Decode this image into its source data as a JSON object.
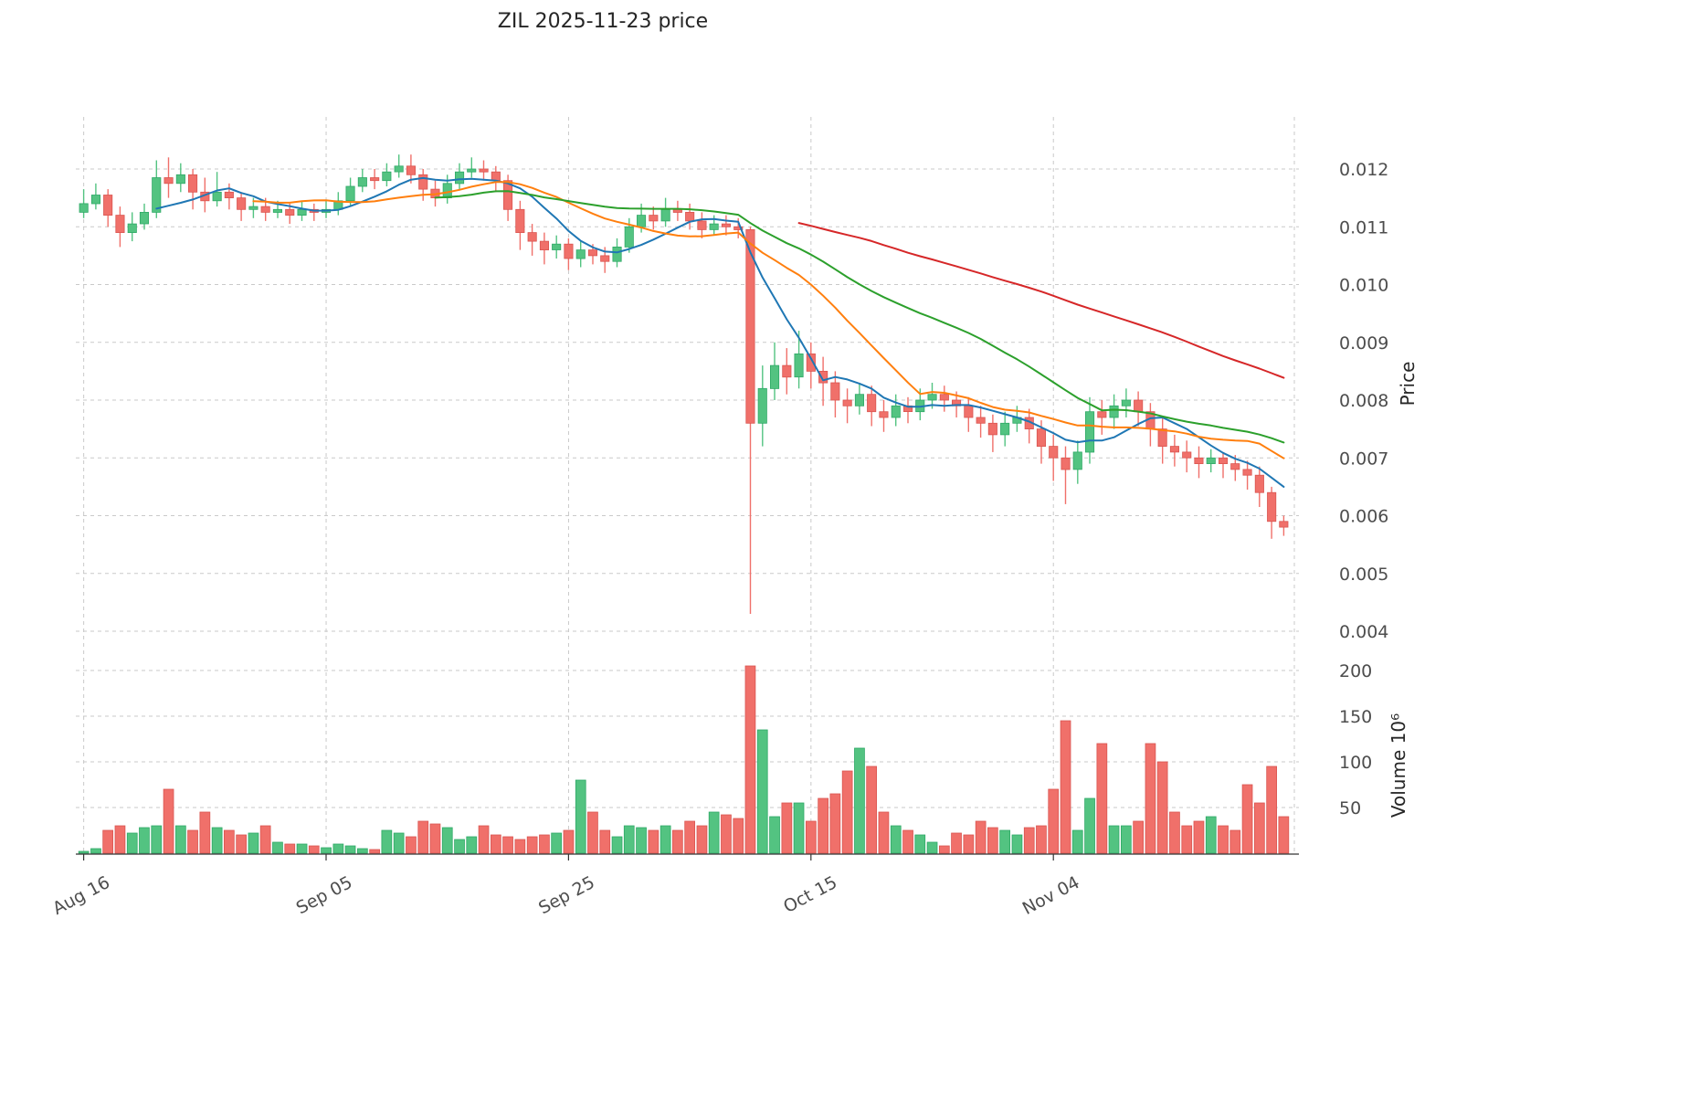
{
  "chart_data": {
    "type": "candlestick",
    "title": "ZIL  2025-11-23  price",
    "ylabel_price": "Price",
    "ylabel_volume": "Volume  10⁶",
    "legend_position": "none",
    "grid": true,
    "x_tick_labels": [
      "Aug 16",
      "Sep 05",
      "Sep 25",
      "Oct 15",
      "Nov 04"
    ],
    "x_tick_indices": [
      0,
      20,
      40,
      60,
      80
    ],
    "price_ticks": [
      0.004,
      0.005,
      0.006,
      0.007,
      0.008,
      0.009,
      0.01,
      0.011,
      0.012
    ],
    "price_ylim": [
      0.0038,
      0.0129
    ],
    "volume_ticks": [
      50,
      100,
      150,
      200
    ],
    "volume_ylim": [
      0,
      230
    ],
    "moving_averages": [
      {
        "name": "ma7",
        "window": 7,
        "color": "#1f77b4"
      },
      {
        "name": "ma15",
        "window": 15,
        "color": "#ff7f0e"
      },
      {
        "name": "ma30",
        "window": 30,
        "color": "#2ca02c"
      },
      {
        "name": "ma60",
        "window": 60,
        "color": "#d62728"
      }
    ],
    "colors": {
      "up": "#53c381",
      "down": "#f0706a",
      "up_edge": "#2fa866",
      "down_edge": "#d95550",
      "grid": "#c9c9c9",
      "text": "#4d4d4d",
      "spine": "#333333"
    },
    "candles": [
      [
        0.01125,
        0.01165,
        0.01115,
        0.0114
      ],
      [
        0.0114,
        0.01175,
        0.0113,
        0.01155
      ],
      [
        0.01155,
        0.01165,
        0.011,
        0.0112
      ],
      [
        0.0112,
        0.01135,
        0.01065,
        0.0109
      ],
      [
        0.0109,
        0.01125,
        0.01075,
        0.01105
      ],
      [
        0.01105,
        0.0114,
        0.01095,
        0.01125
      ],
      [
        0.01125,
        0.01215,
        0.01115,
        0.01185
      ],
      [
        0.01185,
        0.0122,
        0.0115,
        0.01175
      ],
      [
        0.01175,
        0.0121,
        0.0116,
        0.0119
      ],
      [
        0.0119,
        0.012,
        0.0113,
        0.0116
      ],
      [
        0.0116,
        0.01185,
        0.01125,
        0.01145
      ],
      [
        0.01145,
        0.01195,
        0.01135,
        0.0116
      ],
      [
        0.0116,
        0.01175,
        0.0113,
        0.0115
      ],
      [
        0.0115,
        0.0116,
        0.0111,
        0.0113
      ],
      [
        0.0113,
        0.0115,
        0.01115,
        0.01135
      ],
      [
        0.01135,
        0.0115,
        0.0111,
        0.01125
      ],
      [
        0.01125,
        0.01145,
        0.01115,
        0.0113
      ],
      [
        0.0113,
        0.0114,
        0.01105,
        0.0112
      ],
      [
        0.0112,
        0.01145,
        0.0111,
        0.0113
      ],
      [
        0.0113,
        0.0114,
        0.0111,
        0.01125
      ],
      [
        0.01125,
        0.01145,
        0.01115,
        0.0113
      ],
      [
        0.0113,
        0.0116,
        0.0112,
        0.01145
      ],
      [
        0.01145,
        0.01185,
        0.01135,
        0.0117
      ],
      [
        0.0117,
        0.012,
        0.0116,
        0.01185
      ],
      [
        0.01185,
        0.012,
        0.01165,
        0.0118
      ],
      [
        0.0118,
        0.0121,
        0.0117,
        0.01195
      ],
      [
        0.01195,
        0.01225,
        0.01185,
        0.01205
      ],
      [
        0.01205,
        0.01225,
        0.01175,
        0.0119
      ],
      [
        0.0119,
        0.012,
        0.01145,
        0.01165
      ],
      [
        0.01165,
        0.0118,
        0.01135,
        0.0115
      ],
      [
        0.0115,
        0.0119,
        0.0114,
        0.01175
      ],
      [
        0.01175,
        0.0121,
        0.01165,
        0.01195
      ],
      [
        0.01195,
        0.0122,
        0.01185,
        0.012
      ],
      [
        0.012,
        0.01215,
        0.0118,
        0.01195
      ],
      [
        0.01195,
        0.01205,
        0.0116,
        0.0118
      ],
      [
        0.0118,
        0.0119,
        0.0111,
        0.0113
      ],
      [
        0.0113,
        0.01145,
        0.0106,
        0.0109
      ],
      [
        0.0109,
        0.01105,
        0.0105,
        0.01075
      ],
      [
        0.01075,
        0.0109,
        0.01035,
        0.0106
      ],
      [
        0.0106,
        0.01085,
        0.01045,
        0.0107
      ],
      [
        0.0107,
        0.0108,
        0.01025,
        0.01045
      ],
      [
        0.01045,
        0.01075,
        0.0103,
        0.0106
      ],
      [
        0.0106,
        0.0107,
        0.01035,
        0.0105
      ],
      [
        0.0105,
        0.01065,
        0.0102,
        0.0104
      ],
      [
        0.0104,
        0.0108,
        0.0103,
        0.01065
      ],
      [
        0.01065,
        0.01115,
        0.01055,
        0.011
      ],
      [
        0.011,
        0.0114,
        0.0109,
        0.0112
      ],
      [
        0.0112,
        0.01135,
        0.01095,
        0.0111
      ],
      [
        0.0111,
        0.0115,
        0.011,
        0.0113
      ],
      [
        0.0113,
        0.01145,
        0.0111,
        0.01125
      ],
      [
        0.01125,
        0.0114,
        0.01095,
        0.0111
      ],
      [
        0.0111,
        0.01125,
        0.0108,
        0.01095
      ],
      [
        0.01095,
        0.0112,
        0.01085,
        0.01105
      ],
      [
        0.01105,
        0.0112,
        0.01085,
        0.011
      ],
      [
        0.011,
        0.01115,
        0.0108,
        0.01095
      ],
      [
        0.01095,
        0.011,
        0.0043,
        0.0076
      ],
      [
        0.0076,
        0.0086,
        0.0072,
        0.0082
      ],
      [
        0.0082,
        0.009,
        0.008,
        0.0086
      ],
      [
        0.0086,
        0.0089,
        0.0081,
        0.0084
      ],
      [
        0.0084,
        0.0092,
        0.0082,
        0.0088
      ],
      [
        0.0088,
        0.009,
        0.0082,
        0.0085
      ],
      [
        0.0085,
        0.00875,
        0.0079,
        0.0083
      ],
      [
        0.0083,
        0.0085,
        0.0077,
        0.008
      ],
      [
        0.008,
        0.0082,
        0.0076,
        0.0079
      ],
      [
        0.0079,
        0.0083,
        0.00775,
        0.0081
      ],
      [
        0.0081,
        0.00825,
        0.00755,
        0.0078
      ],
      [
        0.0078,
        0.008,
        0.00745,
        0.0077
      ],
      [
        0.0077,
        0.0081,
        0.00755,
        0.0079
      ],
      [
        0.0079,
        0.00805,
        0.0076,
        0.0078
      ],
      [
        0.0078,
        0.0082,
        0.00765,
        0.008
      ],
      [
        0.008,
        0.0083,
        0.00785,
        0.0081
      ],
      [
        0.0081,
        0.00825,
        0.0078,
        0.008
      ],
      [
        0.008,
        0.00815,
        0.0077,
        0.0079
      ],
      [
        0.0079,
        0.00805,
        0.00745,
        0.0077
      ],
      [
        0.0077,
        0.0079,
        0.00735,
        0.0076
      ],
      [
        0.0076,
        0.00775,
        0.0071,
        0.0074
      ],
      [
        0.0074,
        0.0078,
        0.0072,
        0.0076
      ],
      [
        0.0076,
        0.0079,
        0.00745,
        0.0077
      ],
      [
        0.0077,
        0.00785,
        0.00725,
        0.0075
      ],
      [
        0.0075,
        0.00765,
        0.0069,
        0.0072
      ],
      [
        0.0072,
        0.0074,
        0.0066,
        0.007
      ],
      [
        0.007,
        0.0072,
        0.0062,
        0.0068
      ],
      [
        0.0068,
        0.0073,
        0.00655,
        0.0071
      ],
      [
        0.0071,
        0.00805,
        0.0069,
        0.0078
      ],
      [
        0.0078,
        0.008,
        0.0074,
        0.0077
      ],
      [
        0.0077,
        0.0081,
        0.0075,
        0.0079
      ],
      [
        0.0079,
        0.0082,
        0.0077,
        0.008
      ],
      [
        0.008,
        0.00815,
        0.00755,
        0.0078
      ],
      [
        0.0078,
        0.00795,
        0.0072,
        0.0075
      ],
      [
        0.0075,
        0.0077,
        0.0069,
        0.0072
      ],
      [
        0.0072,
        0.0074,
        0.00685,
        0.0071
      ],
      [
        0.0071,
        0.0073,
        0.00675,
        0.007
      ],
      [
        0.007,
        0.0072,
        0.00665,
        0.0069
      ],
      [
        0.0069,
        0.00715,
        0.00675,
        0.007
      ],
      [
        0.007,
        0.0071,
        0.00665,
        0.0069
      ],
      [
        0.0069,
        0.00705,
        0.0066,
        0.0068
      ],
      [
        0.0068,
        0.00695,
        0.00645,
        0.0067
      ],
      [
        0.0067,
        0.00685,
        0.00615,
        0.0064
      ],
      [
        0.0064,
        0.0065,
        0.0056,
        0.0059
      ],
      [
        0.0059,
        0.006,
        0.00565,
        0.0058
      ]
    ],
    "volumes_millions": [
      2,
      5,
      25,
      30,
      22,
      28,
      30,
      70,
      30,
      25,
      45,
      28,
      25,
      20,
      22,
      30,
      12,
      10,
      10,
      8,
      6,
      10,
      8,
      5,
      4,
      25,
      22,
      18,
      35,
      32,
      28,
      15,
      18,
      30,
      20,
      18,
      15,
      18,
      20,
      22,
      25,
      80,
      45,
      25,
      18,
      30,
      28,
      25,
      30,
      25,
      35,
      30,
      45,
      42,
      38,
      205,
      135,
      40,
      55,
      55,
      35,
      60,
      65,
      90,
      115,
      95,
      45,
      30,
      25,
      20,
      12,
      8,
      22,
      20,
      35,
      28,
      25,
      20,
      28,
      30,
      70,
      145,
      25,
      60,
      120,
      30,
      30,
      35,
      120,
      100,
      45,
      30,
      35,
      40,
      30,
      25,
      75,
      55,
      95,
      40
    ]
  }
}
